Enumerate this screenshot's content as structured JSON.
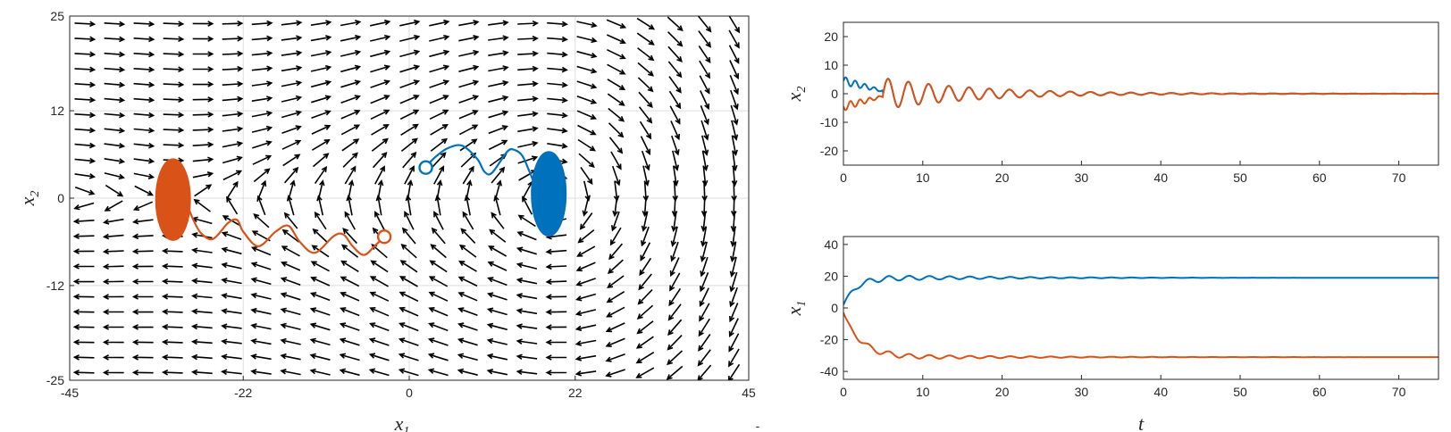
{
  "chart_data": [
    {
      "id": "phase",
      "type": "line",
      "title": "",
      "xlabel": "x",
      "xlabel_sub": "1",
      "ylabel": "x",
      "ylabel_sub": "2",
      "xlim": [
        -45,
        45
      ],
      "ylim": [
        -25,
        25
      ],
      "xticks": [
        -45,
        -22,
        0,
        22,
        45
      ],
      "yticks": [
        -25,
        -12,
        0,
        12,
        25
      ],
      "grid": true,
      "extra_label": "-",
      "quiver": {
        "nx": 23,
        "ny": 24,
        "color": "#000000"
      },
      "series": [
        {
          "color": "#0072BD",
          "start": [
            2.2,
            4.2
          ],
          "path": [
            [
              2.2,
              4.2
            ],
            [
              3.2,
              5.4
            ],
            [
              5,
              6.8
            ],
            [
              7,
              7.2
            ],
            [
              9,
              5.4
            ],
            [
              10,
              3.6
            ],
            [
              11,
              3.5
            ],
            [
              13,
              6.4
            ],
            [
              14,
              6.6
            ],
            [
              15,
              5.8
            ],
            [
              16,
              3.5
            ],
            [
              16.8,
              1.6
            ],
            [
              17.4,
              1.4
            ]
          ],
          "cycle": {
            "center": [
              18.5,
              0.6
            ],
            "rx": 2.3,
            "ry": 5.8
          }
        },
        {
          "color": "#D95319",
          "start": [
            -3.3,
            -5.3
          ],
          "path": [
            [
              -3.3,
              -5.3
            ],
            [
              -4.5,
              -6.5
            ],
            [
              -6,
              -7.8
            ],
            [
              -7.5,
              -6.6
            ],
            [
              -8.7,
              -5
            ],
            [
              -10,
              -5.2
            ],
            [
              -12.5,
              -7.5
            ],
            [
              -14.5,
              -6
            ],
            [
              -16,
              -3.8
            ],
            [
              -17.7,
              -4.6
            ],
            [
              -20,
              -6.6
            ],
            [
              -22,
              -4.6
            ],
            [
              -22.8,
              -3
            ],
            [
              -24,
              -3.4
            ],
            [
              -26,
              -5.6
            ],
            [
              -27.6,
              -4.8
            ],
            [
              -28.6,
              -3
            ],
            [
              -29.2,
              -1.6
            ],
            [
              -29.8,
              -1.1
            ]
          ],
          "cycle": {
            "center": [
              -31.3,
              -0.2
            ],
            "rx": 2.3,
            "ry": 5.6
          }
        }
      ]
    },
    {
      "id": "x2t",
      "type": "line",
      "xlabel": "",
      "ylabel": "x",
      "ylabel_sub": "2",
      "xlim": [
        0,
        75
      ],
      "ylim": [
        -25,
        25
      ],
      "xticks": [
        0,
        10,
        20,
        30,
        40,
        50,
        60,
        70
      ],
      "yticks": [
        -20,
        -10,
        0,
        10,
        20
      ],
      "series": [
        {
          "color": "#0072BD",
          "equilibrium": 0,
          "osc": [
            [
              0,
              3,
              6,
              1.2
            ],
            [
              5,
              0,
              5.5,
              1.25
            ]
          ]
        },
        {
          "color": "#D95319",
          "equilibrium": 0,
          "osc": [
            [
              0,
              -3,
              -6,
              1.2
            ],
            [
              5,
              0,
              -5.5,
              1.25
            ]
          ]
        }
      ]
    },
    {
      "id": "x1t",
      "type": "line",
      "xlabel": "t",
      "ylabel": "x",
      "ylabel_sub": "1",
      "xlim": [
        0,
        75
      ],
      "ylim": [
        -45,
        45
      ],
      "xticks": [
        0,
        10,
        20,
        30,
        40,
        50,
        60,
        70
      ],
      "yticks": [
        -40,
        -20,
        0,
        20,
        40
      ],
      "series": [
        {
          "color": "#0072BD",
          "start": 2,
          "equilibrium": 19,
          "rise_tau": 1.6,
          "ripple": 2.5
        },
        {
          "color": "#D95319",
          "start": -3,
          "equilibrium": -31,
          "rise_tau": 2.2,
          "ripple": 2.5
        }
      ]
    }
  ]
}
